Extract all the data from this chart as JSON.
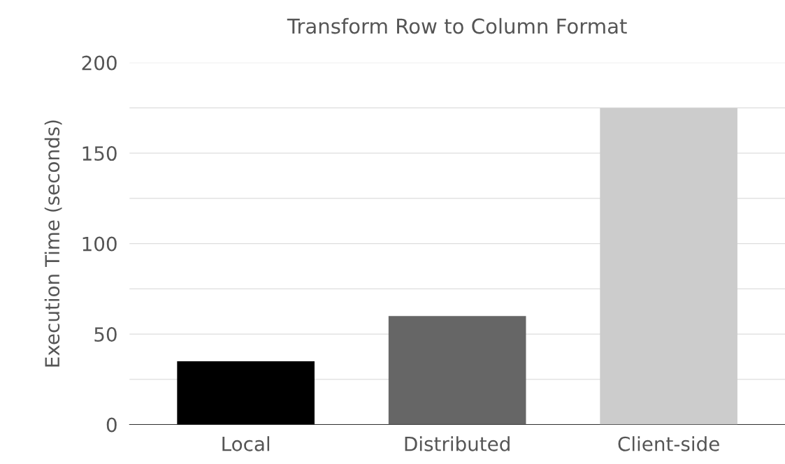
{
  "chart_data": {
    "type": "bar",
    "title": "Transform Row to Column Format",
    "ylabel": "Execution Time (seconds)",
    "categories": [
      "Local",
      "Distributed",
      "Client-side"
    ],
    "values": [
      35,
      60,
      175
    ],
    "colors": [
      "#000000",
      "#666666",
      "#cccccc"
    ],
    "ylim": [
      0,
      200
    ],
    "yticks": [
      0,
      {
        "value": 25,
        "label": null
      },
      50,
      {
        "value": 75,
        "label": null
      },
      100,
      {
        "value": 125,
        "label": null
      },
      150,
      {
        "value": 175,
        "label": null
      },
      200
    ],
    "grid": "y"
  }
}
